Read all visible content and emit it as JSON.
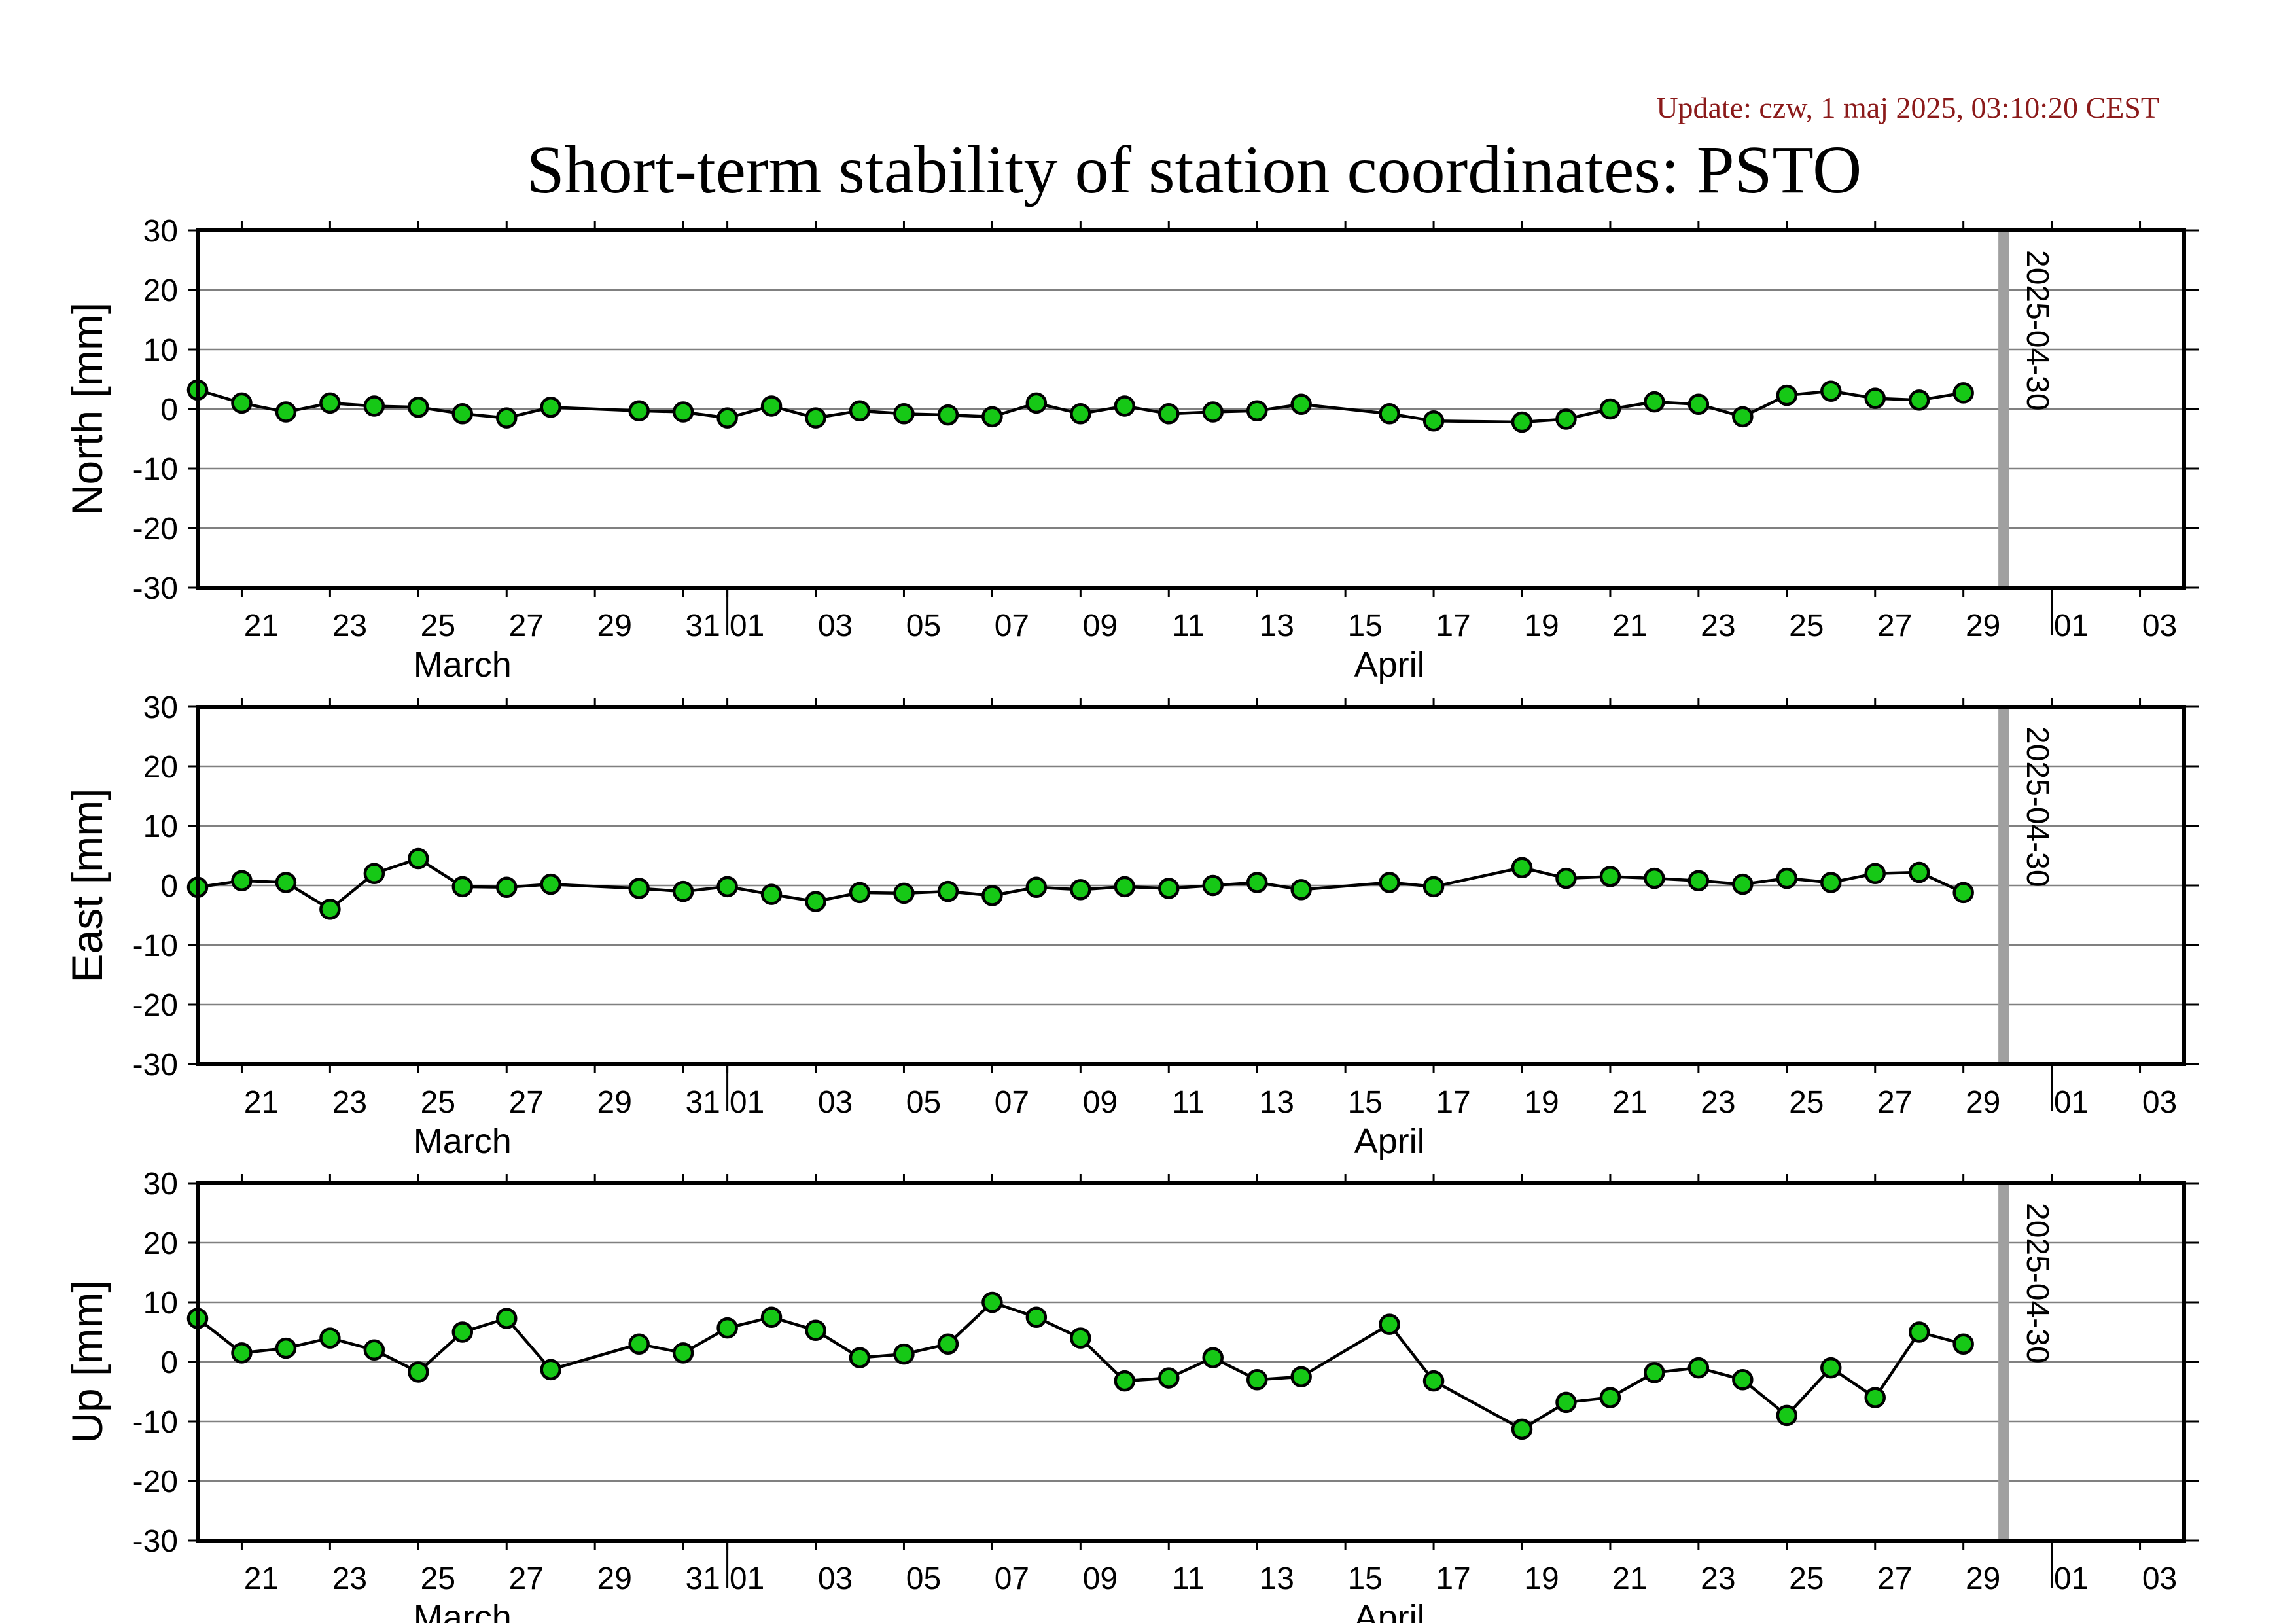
{
  "header": {
    "update_text": "Update: czw, 1 maj 2025, 03:10:20 CEST",
    "title": "Short-term stability of station coordinates: PSTO"
  },
  "colors": {
    "marker_fill": "#16c816",
    "marker_edge": "#000000",
    "line": "#000000",
    "grid": "#808080",
    "today_line": "#a0a0a0",
    "update_text": "#8b1a1a"
  },
  "chart_data": [
    {
      "type": "line",
      "ylabel": "North [mm]",
      "ylim": [
        -30,
        30
      ],
      "yticks": [
        -30,
        -20,
        -10,
        0,
        10,
        20,
        30
      ],
      "xlim": [
        "2025-03-20",
        "2025-05-04"
      ],
      "xtick_labels": [
        "21",
        "23",
        "25",
        "27",
        "29",
        "31",
        "01",
        "03",
        "05",
        "07",
        "09",
        "11",
        "13",
        "15",
        "17",
        "19",
        "21",
        "23",
        "25",
        "27",
        "29",
        "01",
        "03"
      ],
      "month_labels": [
        "March",
        "April"
      ],
      "grid": true,
      "marker_line": {
        "date": "2025-04-30",
        "label": "2025-04-30"
      },
      "series": [
        {
          "x": [
            "2025-03-20",
            "2025-03-21",
            "2025-03-22",
            "2025-03-23",
            "2025-03-24",
            "2025-03-25",
            "2025-03-26",
            "2025-03-27",
            "2025-03-28",
            "2025-03-30",
            "2025-03-31",
            "2025-04-01",
            "2025-04-02",
            "2025-04-03",
            "2025-04-04",
            "2025-04-05",
            "2025-04-06",
            "2025-04-07",
            "2025-04-08",
            "2025-04-09",
            "2025-04-10",
            "2025-04-11",
            "2025-04-12",
            "2025-04-13",
            "2025-04-14",
            "2025-04-16",
            "2025-04-17",
            "2025-04-19",
            "2025-04-20",
            "2025-04-21",
            "2025-04-22",
            "2025-04-23",
            "2025-04-24",
            "2025-04-25",
            "2025-04-26",
            "2025-04-27",
            "2025-04-28",
            "2025-04-29"
          ],
          "y": [
            3.2,
            1.0,
            -0.5,
            1.0,
            0.5,
            0.3,
            -0.8,
            -1.5,
            0.3,
            -0.3,
            -0.5,
            -1.5,
            0.5,
            -1.5,
            -0.3,
            -0.8,
            -1.0,
            -1.3,
            1.0,
            -0.8,
            0.5,
            -0.8,
            -0.5,
            -0.3,
            0.8,
            -0.8,
            -2.0,
            -2.2,
            -1.7,
            0.0,
            1.2,
            0.8,
            -1.3,
            2.3,
            3.0,
            1.8,
            1.5,
            2.7
          ]
        }
      ]
    },
    {
      "type": "line",
      "ylabel": "East [mm]",
      "ylim": [
        -30,
        30
      ],
      "yticks": [
        -30,
        -20,
        -10,
        0,
        10,
        20,
        30
      ],
      "xlim": [
        "2025-03-20",
        "2025-05-04"
      ],
      "xtick_labels": [
        "21",
        "23",
        "25",
        "27",
        "29",
        "31",
        "01",
        "03",
        "05",
        "07",
        "09",
        "11",
        "13",
        "15",
        "17",
        "19",
        "21",
        "23",
        "25",
        "27",
        "29",
        "01",
        "03"
      ],
      "month_labels": [
        "March",
        "April"
      ],
      "grid": true,
      "marker_line": {
        "date": "2025-04-30",
        "label": "2025-04-30"
      },
      "series": [
        {
          "x": [
            "2025-03-20",
            "2025-03-21",
            "2025-03-22",
            "2025-03-23",
            "2025-03-24",
            "2025-03-25",
            "2025-03-26",
            "2025-03-27",
            "2025-03-28",
            "2025-03-30",
            "2025-03-31",
            "2025-04-01",
            "2025-04-02",
            "2025-04-03",
            "2025-04-04",
            "2025-04-05",
            "2025-04-06",
            "2025-04-07",
            "2025-04-08",
            "2025-04-09",
            "2025-04-10",
            "2025-04-11",
            "2025-04-12",
            "2025-04-13",
            "2025-04-14",
            "2025-04-16",
            "2025-04-17",
            "2025-04-19",
            "2025-04-20",
            "2025-04-21",
            "2025-04-22",
            "2025-04-23",
            "2025-04-24",
            "2025-04-25",
            "2025-04-26",
            "2025-04-27",
            "2025-04-28",
            "2025-04-29"
          ],
          "y": [
            -0.3,
            0.8,
            0.5,
            -4.0,
            2.0,
            4.5,
            -0.2,
            -0.3,
            0.2,
            -0.5,
            -1.0,
            -0.2,
            -1.5,
            -2.7,
            -1.2,
            -1.3,
            -1.0,
            -1.7,
            -0.3,
            -0.7,
            -0.2,
            -0.5,
            0.0,
            0.5,
            -0.7,
            0.5,
            -0.2,
            3.0,
            1.2,
            1.5,
            1.2,
            0.8,
            0.2,
            1.2,
            0.5,
            2.0,
            2.2,
            -1.2
          ]
        }
      ]
    },
    {
      "type": "line",
      "ylabel": "Up [mm]",
      "ylim": [
        -30,
        30
      ],
      "yticks": [
        -30,
        -20,
        -10,
        0,
        10,
        20,
        30
      ],
      "xlim": [
        "2025-03-20",
        "2025-05-04"
      ],
      "xtick_labels": [
        "21",
        "23",
        "25",
        "27",
        "29",
        "31",
        "01",
        "03",
        "05",
        "07",
        "09",
        "11",
        "13",
        "15",
        "17",
        "19",
        "21",
        "23",
        "25",
        "27",
        "29",
        "01",
        "03"
      ],
      "month_labels": [
        "March",
        "April"
      ],
      "grid": true,
      "marker_line": {
        "date": "2025-04-30",
        "label": "2025-04-30"
      },
      "series": [
        {
          "x": [
            "2025-03-20",
            "2025-03-21",
            "2025-03-22",
            "2025-03-23",
            "2025-03-24",
            "2025-03-25",
            "2025-03-26",
            "2025-03-27",
            "2025-03-28",
            "2025-03-30",
            "2025-03-31",
            "2025-04-01",
            "2025-04-02",
            "2025-04-03",
            "2025-04-04",
            "2025-04-05",
            "2025-04-06",
            "2025-04-07",
            "2025-04-08",
            "2025-04-09",
            "2025-04-10",
            "2025-04-11",
            "2025-04-12",
            "2025-04-13",
            "2025-04-14",
            "2025-04-16",
            "2025-04-17",
            "2025-04-19",
            "2025-04-20",
            "2025-04-21",
            "2025-04-22",
            "2025-04-23",
            "2025-04-24",
            "2025-04-25",
            "2025-04-26",
            "2025-04-27",
            "2025-04-28",
            "2025-04-29"
          ],
          "y": [
            7.3,
            1.5,
            2.3,
            4.0,
            2.0,
            -1.7,
            5.0,
            7.3,
            -1.3,
            3.0,
            1.5,
            5.7,
            7.5,
            5.3,
            0.7,
            1.3,
            3.0,
            10.0,
            7.5,
            4.0,
            -3.2,
            -2.7,
            0.7,
            -3.0,
            -2.5,
            6.3,
            -3.2,
            -11.3,
            -6.8,
            -6.0,
            -1.8,
            -1.0,
            -3.0,
            -9.0,
            -1.0,
            -6.0,
            5.0,
            3.0
          ]
        }
      ]
    }
  ]
}
